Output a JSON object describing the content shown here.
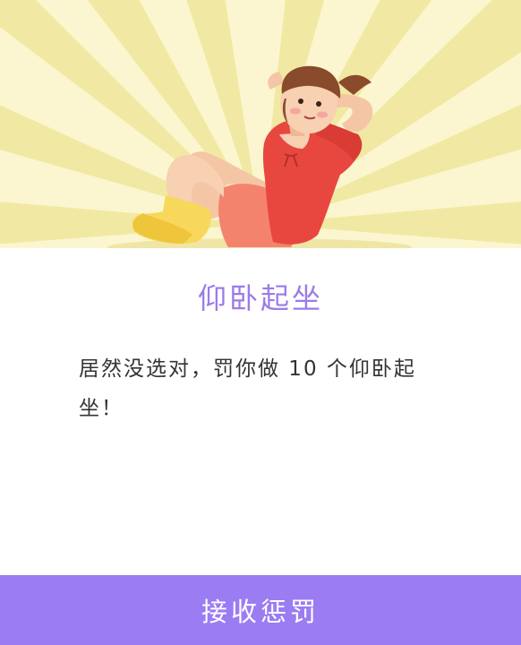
{
  "dialog": {
    "title": "仰卧起坐",
    "message": "居然没选对，罚你做 10 个仰卧起坐！",
    "accept_button_label": "接收惩罚"
  },
  "colors": {
    "accent": "#9b7cf2",
    "title": "#9b7bea",
    "hero_background": "#fbf6cf",
    "hero_rays": "#f2eaa8"
  },
  "illustration": {
    "subject": "woman-doing-situps",
    "icon": "situp-illustration-icon"
  }
}
